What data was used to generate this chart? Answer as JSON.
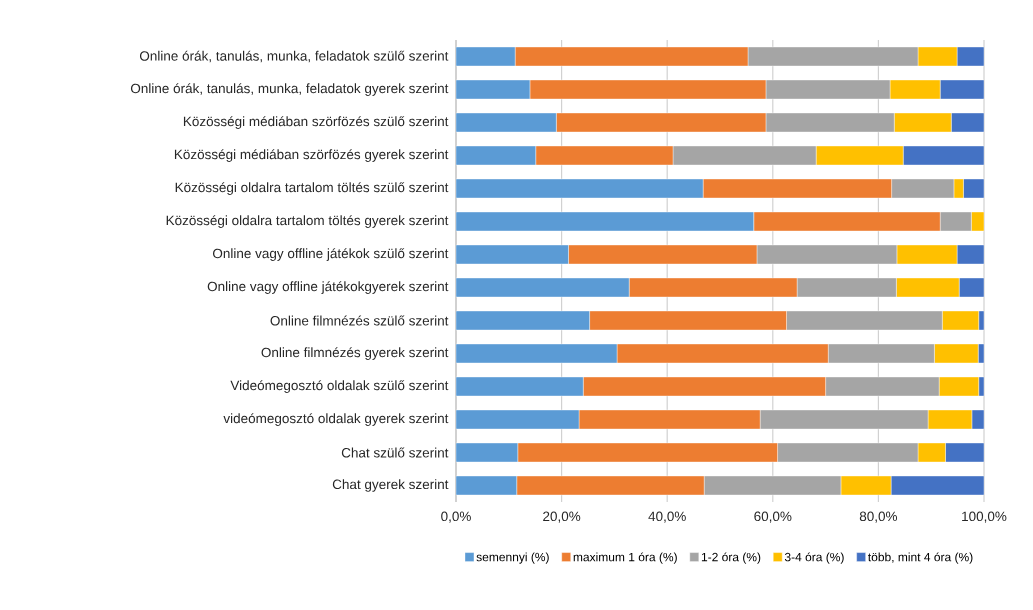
{
  "chart_data": {
    "type": "bar",
    "orientation": "horizontal",
    "stacked": true,
    "categories": [
      "Online órák, tanulás, munka, feladatok szülő szerint",
      "Online órák, tanulás, munka, feladatok gyerek szerint",
      "Közösségi médiában szörfözés szülő szerint",
      "Közösségi médiában szörfözés gyerek szerint",
      "Közösségi oldalra tartalom töltés szülő szerint",
      "Közösségi oldalra tartalom töltés gyerek szerint",
      "Online vagy offline játékok szülő szerint",
      "Online vagy offline játékokgyerek szerint",
      "Online filmnézés szülő szerint",
      "Online filmnézés gyerek szerint",
      "Videómegosztó oldalak szülő szerint",
      "videómegosztó oldalak gyerek szerint",
      "Chat szülő szerint",
      "Chat gyerek szerint"
    ],
    "series": [
      {
        "name": "semennyi (%)",
        "color": "#5b9bd5",
        "values": [
          11.2,
          14.0,
          19.0,
          15.1,
          46.8,
          56.4,
          21.3,
          32.8,
          25.3,
          30.5,
          24.1,
          23.3,
          11.7,
          11.5
        ]
      },
      {
        "name": "maximum 1 óra (%)",
        "color": "#ed7d31",
        "values": [
          44.1,
          44.7,
          39.7,
          26.0,
          35.7,
          35.3,
          35.7,
          31.8,
          37.3,
          40.0,
          45.9,
          34.3,
          49.2,
          35.5
        ]
      },
      {
        "name": "1-2 óra (%)",
        "color": "#a5a5a5",
        "values": [
          32.2,
          23.5,
          24.3,
          27.1,
          11.8,
          5.9,
          26.5,
          18.8,
          29.5,
          20.1,
          21.5,
          31.8,
          26.6,
          25.9
        ]
      },
      {
        "name": "3-4 óra (%)",
        "color": "#ffc000",
        "values": [
          7.4,
          9.5,
          10.8,
          16.5,
          1.8,
          2.4,
          11.4,
          11.9,
          6.9,
          8.3,
          7.5,
          8.3,
          5.2,
          9.5
        ]
      },
      {
        "name": "több, mint 4 óra (%)",
        "color": "#4472c4",
        "values": [
          5.1,
          8.3,
          6.2,
          15.3,
          3.9,
          0,
          5.1,
          4.7,
          1.0,
          1.1,
          1.0,
          2.3,
          7.3,
          17.6
        ]
      }
    ],
    "xlim": [
      0,
      100
    ],
    "xticks": [
      {
        "value": 0,
        "label": "0,0%"
      },
      {
        "value": 20,
        "label": "20,0%"
      },
      {
        "value": 40,
        "label": "40,0%"
      },
      {
        "value": 60,
        "label": "60,0%"
      },
      {
        "value": 80,
        "label": "80,0%"
      },
      {
        "value": 100,
        "label": "100,0%"
      }
    ],
    "grid": "x",
    "legend": "bottom"
  }
}
